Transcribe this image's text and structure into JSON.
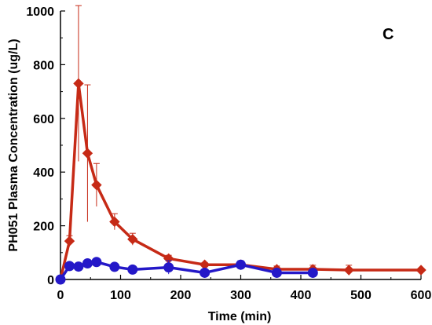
{
  "chart_data": {
    "type": "line",
    "panel_label": "C",
    "xlabel": "Time (min)",
    "ylabel": "PH051 Plasma Concentration (ug/L)",
    "xlim": [
      0,
      600
    ],
    "ylim": [
      0,
      1000
    ],
    "xticks": [
      "0",
      "100",
      "200",
      "300",
      "400",
      "500",
      "600"
    ],
    "yticks": [
      "0",
      "200",
      "400",
      "600",
      "800",
      "1000"
    ],
    "grid": false,
    "series": [
      {
        "color": "#c62a16",
        "marker": "diamond",
        "x": [
          0,
          15,
          30,
          45,
          60,
          90,
          120,
          180,
          240,
          300,
          360,
          420,
          480,
          600
        ],
        "y": [
          0,
          143,
          730,
          470,
          352,
          215,
          150,
          78,
          55,
          55,
          38,
          38,
          35,
          35
        ],
        "error": [
          0,
          20,
          290,
          255,
          80,
          30,
          22,
          12,
          8,
          8,
          12,
          15,
          18,
          5
        ]
      },
      {
        "color": "#2418c8",
        "marker": "circle",
        "x": [
          0,
          15,
          30,
          45,
          60,
          90,
          120,
          180,
          240,
          300,
          360,
          420
        ],
        "y": [
          0,
          50,
          48,
          60,
          65,
          47,
          37,
          45,
          25,
          55,
          25,
          25
        ],
        "error": [
          0,
          10,
          10,
          12,
          10,
          8,
          10,
          25,
          8,
          15,
          10,
          8
        ]
      }
    ]
  }
}
